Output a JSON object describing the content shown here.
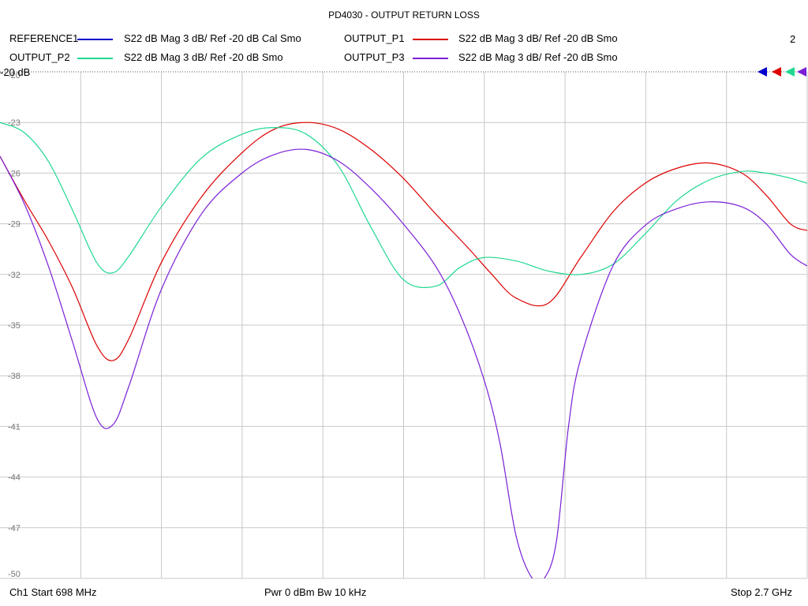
{
  "title": "PD4030 - OUTPUT RETURN LOSS",
  "legend": [
    {
      "name": "REFERENCE1",
      "desc": "S22  dB Mag  3 dB/ Ref -20 dB  Cal Smo",
      "color": "#0000cc"
    },
    {
      "name": "OUTPUT_P1",
      "desc": "S22  dB Mag  3 dB/ Ref -20 dB  Smo",
      "color": "#dd0000"
    },
    {
      "name": "OUTPUT_P2",
      "desc": "S22  dB Mag  3 dB/ Ref -20 dB  Smo",
      "color": "#20d890"
    },
    {
      "name": "OUTPUT_P3",
      "desc": "S22  dB Mag  3 dB/ Ref -20 dB  Smo",
      "color": "#7a1fd6"
    }
  ],
  "marker_count": "2",
  "ref_label": "-20 dB",
  "footer": {
    "left": "Ch1  Start  698 MHz",
    "center": "Pwr  0 dBm  Bw  10 kHz",
    "right": "Stop  2.7 GHz"
  },
  "chart_data": {
    "type": "line",
    "title": "PD4030 - OUTPUT RETURN LOSS",
    "xlabel": "",
    "ylabel": "",
    "x_unit": "MHz",
    "xlim": [
      698,
      2700
    ],
    "ylim": [
      -50,
      -20
    ],
    "y_ticks": [
      -20,
      -23,
      -26,
      -29,
      -32,
      -35,
      -38,
      -41,
      -44,
      -47,
      -50
    ],
    "y_tick_labels": [
      "-20",
      "-23",
      "-26",
      "-29",
      "-32",
      "-35",
      "-38",
      "-41",
      "-44",
      "-47",
      "-50"
    ],
    "grid": true,
    "series": [
      {
        "name": "OUTPUT_P1",
        "color": "#dd0000",
        "x": [
          698,
          758,
          818,
          878,
          938,
          978,
          1018,
          1098,
          1198,
          1298,
          1378,
          1458,
          1538,
          1618,
          1698,
          1778,
          1858,
          1918,
          1978,
          2058,
          2138,
          2218,
          2298,
          2378,
          2458,
          2538,
          2598,
          2658,
          2700
        ],
        "y": [
          -25.0,
          -27.6,
          -30.0,
          -32.8,
          -36.2,
          -37.1,
          -35.8,
          -31.3,
          -27.4,
          -24.8,
          -23.4,
          -23.0,
          -23.4,
          -24.6,
          -26.3,
          -28.4,
          -30.4,
          -32.0,
          -33.4,
          -33.7,
          -31.0,
          -28.3,
          -26.6,
          -25.7,
          -25.4,
          -26.0,
          -27.3,
          -29.0,
          -29.4
        ]
      },
      {
        "name": "OUTPUT_P2",
        "color": "#20d890",
        "x": [
          698,
          758,
          818,
          878,
          938,
          978,
          1018,
          1098,
          1198,
          1298,
          1378,
          1458,
          1538,
          1618,
          1698,
          1778,
          1838,
          1898,
          1978,
          2058,
          2138,
          2218,
          2298,
          2378,
          2458,
          2538,
          2598,
          2658,
          2700
        ],
        "y": [
          -23.0,
          -23.6,
          -25.3,
          -28.2,
          -31.3,
          -31.9,
          -30.9,
          -28.0,
          -25.1,
          -23.7,
          -23.3,
          -23.7,
          -25.6,
          -29.2,
          -32.3,
          -32.7,
          -31.6,
          -31.0,
          -31.2,
          -31.8,
          -32.0,
          -31.4,
          -29.6,
          -27.6,
          -26.4,
          -25.9,
          -26.0,
          -26.3,
          -26.6
        ]
      },
      {
        "name": "OUTPUT_P3",
        "color": "#7a1fd6",
        "x": [
          698,
          758,
          818,
          878,
          938,
          978,
          1018,
          1098,
          1198,
          1298,
          1378,
          1458,
          1538,
          1618,
          1698,
          1778,
          1838,
          1898,
          1938,
          1978,
          2018,
          2048,
          2078,
          2108,
          2138,
          2218,
          2298,
          2378,
          2458,
          2538,
          2598,
          2658,
          2700
        ],
        "y": [
          -25.0,
          -27.8,
          -31.5,
          -36.0,
          -40.5,
          -40.9,
          -38.6,
          -32.9,
          -28.4,
          -26.0,
          -24.9,
          -24.6,
          -25.3,
          -26.9,
          -29.0,
          -31.5,
          -34.3,
          -38.2,
          -42.0,
          -47.5,
          -50.0,
          -50.0,
          -47.8,
          -41.0,
          -37.0,
          -31.5,
          -29.1,
          -28.1,
          -27.7,
          -28.0,
          -29.0,
          -30.8,
          -31.5
        ]
      }
    ]
  }
}
